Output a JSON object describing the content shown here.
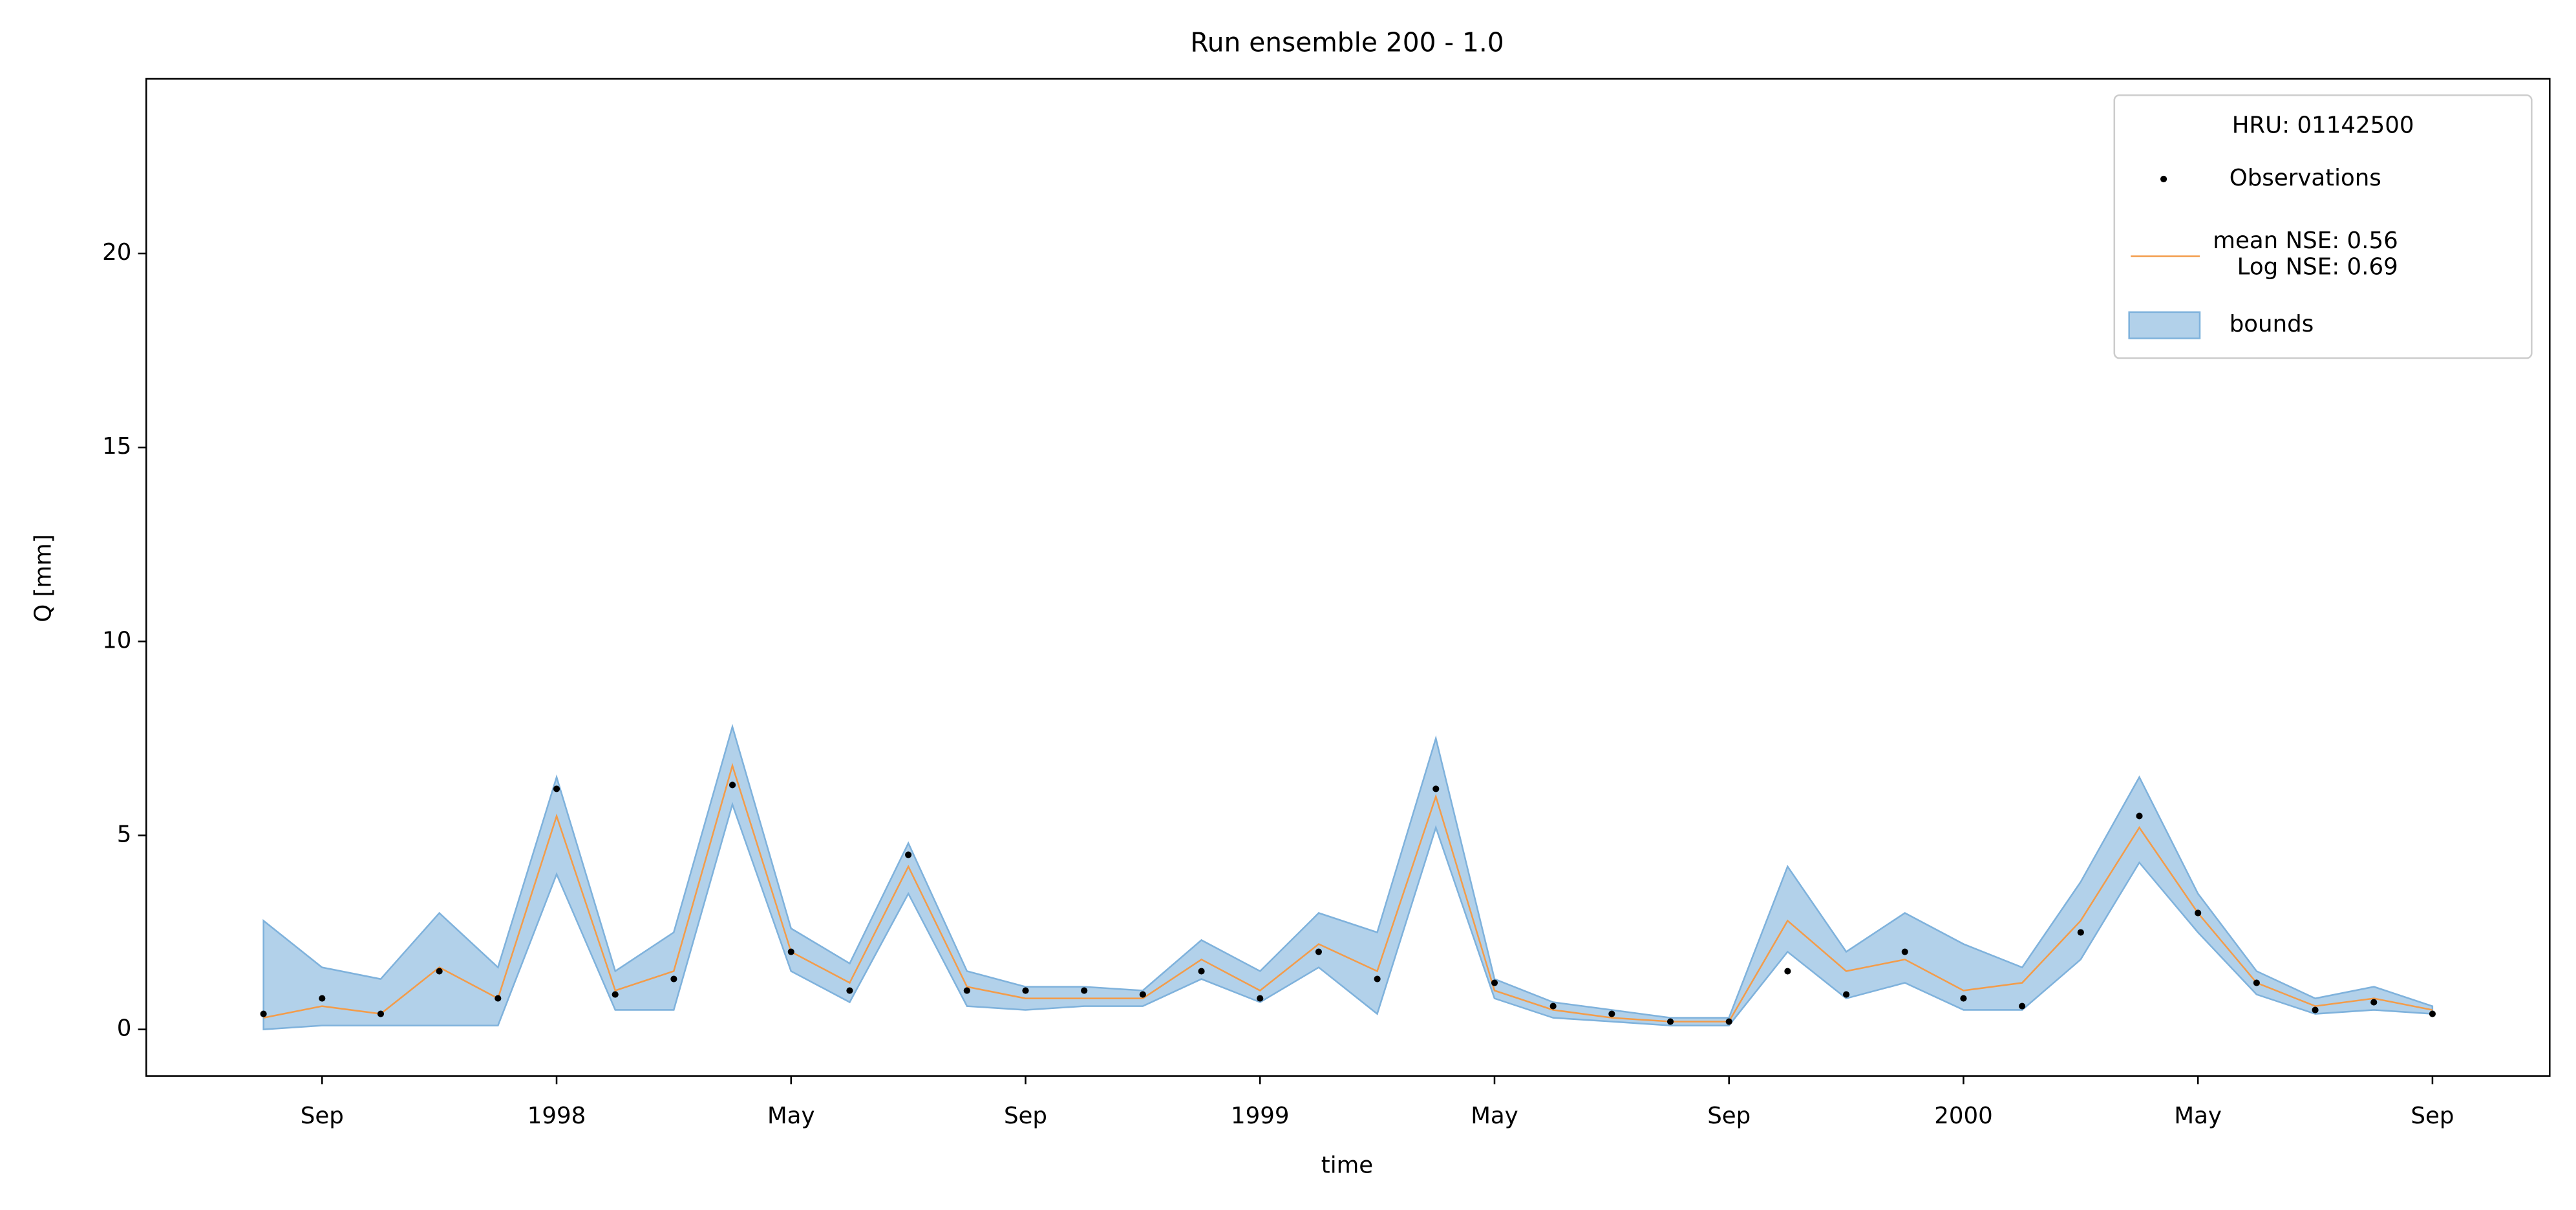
{
  "chart_data": {
    "type": "ensemble",
    "title": "Run ensemble 200 - 1.0",
    "x_label": "time",
    "y_label": "Q [mm]",
    "legend_title": "HRU: 01142500",
    "legend": "upper right",
    "x": [
      "1997-08",
      "1997-09",
      "1997-10",
      "1997-11",
      "1997-12",
      "1998-01",
      "1998-02",
      "1998-03",
      "1998-04",
      "1998-05",
      "1998-06",
      "1998-07",
      "1998-08",
      "1998-09",
      "1998-10",
      "1998-11",
      "1998-12",
      "1999-01",
      "1999-02",
      "1999-03",
      "1999-04",
      "1999-05",
      "1999-06",
      "1999-07",
      "1999-08",
      "1999-09",
      "1999-10",
      "1999-11",
      "1999-12",
      "2000-01",
      "2000-02",
      "2000-03",
      "2000-04",
      "2000-05",
      "2000-06",
      "2000-07",
      "2000-08",
      "2000-09"
    ],
    "xlim": [
      "1997-06",
      "2000-11"
    ],
    "xticks": [
      {
        "value": "1997-09",
        "label": "Sep"
      },
      {
        "value": "1998-01",
        "label": "1998"
      },
      {
        "value": "1998-05",
        "label": "May"
      },
      {
        "value": "1998-09",
        "label": "Sep"
      },
      {
        "value": "1999-01",
        "label": "1999"
      },
      {
        "value": "1999-05",
        "label": "May"
      },
      {
        "value": "1999-09",
        "label": "Sep"
      },
      {
        "value": "2000-01",
        "label": "2000"
      },
      {
        "value": "2000-05",
        "label": "May"
      },
      {
        "value": "2000-09",
        "label": "Sep"
      }
    ],
    "ylim": [
      -1.2,
      24.5
    ],
    "yticks": [
      0,
      5,
      10,
      15,
      20
    ],
    "series": [
      {
        "name": "Observations",
        "kind": "scatter",
        "color": "#000000",
        "values": [
          0.4,
          0.8,
          0.4,
          1.5,
          0.8,
          6.2,
          0.9,
          1.3,
          6.3,
          2.0,
          1.0,
          4.5,
          1.0,
          1.0,
          1.0,
          0.9,
          1.5,
          0.8,
          2.0,
          1.3,
          6.2,
          1.2,
          0.6,
          0.4,
          0.2,
          0.2,
          1.5,
          0.9,
          2.0,
          0.8,
          0.6,
          2.5,
          5.5,
          3.0,
          1.2,
          0.5,
          0.7,
          0.4
        ]
      },
      {
        "name": "mean NSE: 0.56\n  Log NSE: 0.69",
        "kind": "line",
        "color": "#f39c4a",
        "values": [
          0.3,
          0.6,
          0.4,
          1.6,
          0.8,
          5.5,
          1.0,
          1.5,
          6.8,
          2.0,
          1.2,
          4.2,
          1.1,
          0.8,
          0.8,
          0.8,
          1.8,
          1.0,
          2.2,
          1.5,
          6.0,
          1.0,
          0.5,
          0.3,
          0.2,
          0.2,
          2.8,
          1.5,
          1.8,
          1.0,
          1.2,
          2.8,
          5.2,
          3.0,
          1.2,
          0.6,
          0.8,
          0.5
        ]
      },
      {
        "name": "bounds",
        "kind": "band",
        "color": "#7fb2dc",
        "lower": [
          0.0,
          0.1,
          0.1,
          0.1,
          0.1,
          4.0,
          0.5,
          0.5,
          5.8,
          1.5,
          0.7,
          3.5,
          0.6,
          0.5,
          0.6,
          0.6,
          1.3,
          0.7,
          1.6,
          0.4,
          5.2,
          0.8,
          0.3,
          0.2,
          0.1,
          0.1,
          2.0,
          0.8,
          1.2,
          0.5,
          0.5,
          1.8,
          4.3,
          2.5,
          0.9,
          0.4,
          0.5,
          0.4
        ],
        "upper": [
          2.8,
          1.6,
          1.3,
          3.0,
          1.6,
          6.5,
          1.5,
          2.5,
          7.8,
          2.6,
          1.7,
          4.8,
          1.5,
          1.1,
          1.1,
          1.0,
          2.3,
          1.5,
          3.0,
          2.5,
          7.5,
          1.3,
          0.7,
          0.5,
          0.3,
          0.3,
          4.2,
          2.0,
          3.0,
          2.2,
          1.6,
          3.8,
          6.5,
          3.5,
          1.5,
          0.8,
          1.1,
          0.6
        ]
      }
    ]
  }
}
